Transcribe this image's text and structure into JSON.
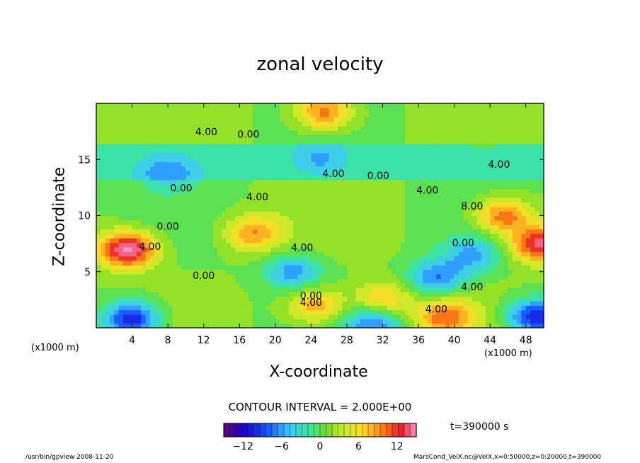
{
  "chart_data": {
    "type": "heatmap",
    "title": "zonal velocity",
    "xlabel": "X-coordinate",
    "ylabel": "Z-coordinate",
    "x_unit_label": "(x1000 m)",
    "xlim": [
      0,
      50
    ],
    "ylim": [
      0,
      20
    ],
    "x_ticks": [
      4,
      8,
      12,
      16,
      20,
      24,
      28,
      32,
      36,
      40,
      44,
      48
    ],
    "y_ticks": [
      5,
      10,
      15
    ],
    "contour_interval_text": "CONTOUR INTERVAL = 2.000E+00",
    "colorbar": {
      "range": [
        -15,
        15
      ],
      "ticks": [
        -12,
        -6,
        0,
        6,
        12
      ]
    },
    "contour_labels": [
      {
        "text": "4.00",
        "x": 12.3,
        "z": 17.4
      },
      {
        "text": "0.00",
        "x": 17.0,
        "z": 17.2
      },
      {
        "text": "4.00",
        "x": 26.5,
        "z": 13.7
      },
      {
        "text": "0.00",
        "x": 31.5,
        "z": 13.5
      },
      {
        "text": "4.00",
        "x": 45.0,
        "z": 14.5
      },
      {
        "text": "0.00",
        "x": 9.5,
        "z": 12.4
      },
      {
        "text": "4.00",
        "x": 18.0,
        "z": 11.6
      },
      {
        "text": "4.00",
        "x": 37.0,
        "z": 12.2
      },
      {
        "text": "8.00",
        "x": 42.0,
        "z": 10.8
      },
      {
        "text": "0.00",
        "x": 8.0,
        "z": 9.0
      },
      {
        "text": "4.00",
        "x": 6.0,
        "z": 7.2
      },
      {
        "text": "4.00",
        "x": 23.0,
        "z": 7.1
      },
      {
        "text": "0.00",
        "x": 41.0,
        "z": 7.5
      },
      {
        "text": "0.00",
        "x": 12.0,
        "z": 4.6
      },
      {
        "text": "4.00",
        "x": 42.0,
        "z": 3.6
      },
      {
        "text": "0.00",
        "x": 24.0,
        "z": 2.8
      },
      {
        "text": "4.00",
        "x": 24.0,
        "z": 2.2
      },
      {
        "text": "4.00",
        "x": 38.0,
        "z": 1.6
      }
    ],
    "features": [
      {
        "kind": "max",
        "x": 3.5,
        "z": 7.0,
        "value": 15
      },
      {
        "kind": "max",
        "x": 17.5,
        "z": 8.5,
        "value": 8
      },
      {
        "kind": "max",
        "x": 45.5,
        "z": 10.0,
        "value": 10
      },
      {
        "kind": "max",
        "x": 49.5,
        "z": 7.5,
        "value": 13
      },
      {
        "kind": "max",
        "x": 25.5,
        "z": 19.3,
        "value": 10
      },
      {
        "kind": "max",
        "x": 39.0,
        "z": 1.0,
        "value": 9
      },
      {
        "kind": "max",
        "x": 24.5,
        "z": 2.0,
        "value": 8
      },
      {
        "kind": "max",
        "x": 32.0,
        "z": 2.5,
        "value": 7
      },
      {
        "kind": "min",
        "x": 8.0,
        "z": 14.0,
        "value": -5
      },
      {
        "kind": "min",
        "x": 25.0,
        "z": 15.0,
        "value": -4
      },
      {
        "kind": "min",
        "x": 22.0,
        "z": 5.0,
        "value": -7
      },
      {
        "kind": "min",
        "x": 38.0,
        "z": 4.5,
        "value": -8
      },
      {
        "kind": "min",
        "x": 42.0,
        "z": 6.5,
        "value": -6
      },
      {
        "kind": "min",
        "x": 4.0,
        "z": 0.8,
        "value": -12
      },
      {
        "kind": "min",
        "x": 49.0,
        "z": 1.0,
        "value": -12
      },
      {
        "kind": "min",
        "x": 31.0,
        "z": 0.5,
        "value": -8
      }
    ]
  },
  "time_label": "t=390000 s",
  "footer_left": "/usr/bin/gpview   2008-11-20",
  "footer_right": "MarsCond_VelX.nc@VelX,x=0:50000,z=0:20000,t=390000"
}
